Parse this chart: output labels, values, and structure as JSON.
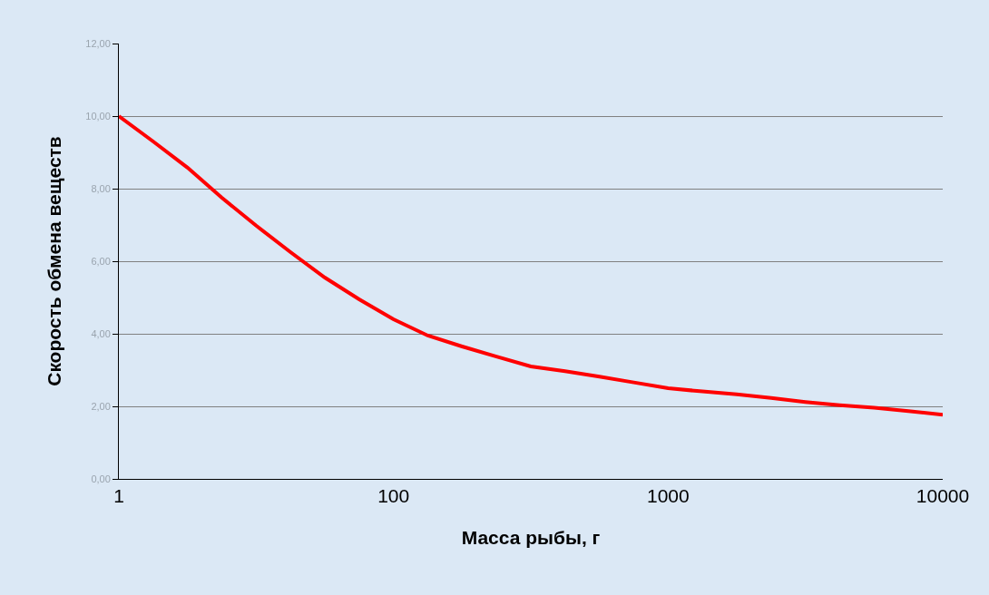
{
  "chart_data": {
    "type": "line",
    "xlabel": "Масса рыбы, г",
    "ylabel": "Скорость обмена веществ",
    "categories": [
      "1",
      null,
      null,
      null,
      null,
      null,
      null,
      null,
      "100",
      null,
      null,
      null,
      null,
      null,
      null,
      null,
      "1000",
      null,
      null,
      null,
      null,
      null,
      null,
      null,
      "10000"
    ],
    "series": [
      {
        "color": "#ff0000",
        "values": [
          10.0,
          9.3,
          8.58,
          7.75,
          6.98,
          6.25,
          5.55,
          4.95,
          4.4,
          3.95,
          3.65,
          3.37,
          3.1,
          2.97,
          2.82,
          2.66,
          2.5,
          2.41,
          2.33,
          2.23,
          2.12,
          2.03,
          1.96,
          1.87,
          1.77
        ]
      }
    ],
    "ylim": [
      0,
      12
    ],
    "yticks": [
      {
        "value": 0,
        "label": "0,00"
      },
      {
        "value": 2,
        "label": "2,00"
      },
      {
        "value": 4,
        "label": "4,00"
      },
      {
        "value": 6,
        "label": "6,00"
      },
      {
        "value": 8,
        "label": "8,00"
      },
      {
        "value": 10,
        "label": "10,00"
      },
      {
        "value": 12,
        "label": "12,00"
      }
    ],
    "grid": "y",
    "marker": "none",
    "line_style": "solid"
  }
}
